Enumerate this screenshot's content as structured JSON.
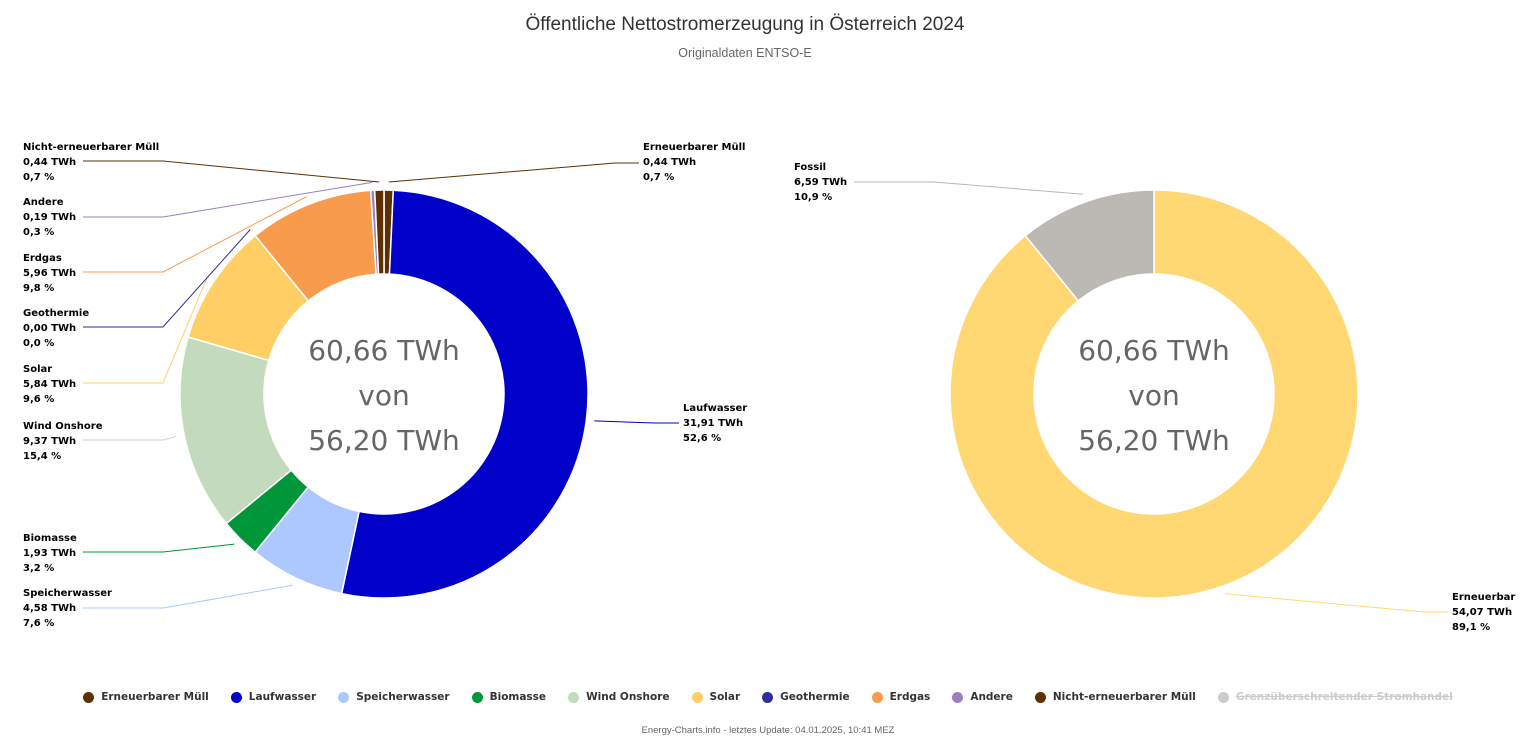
{
  "title": "Öffentliche Nettostromerzeugung in Österreich 2024",
  "subtitle": "Originaldaten ENTSO-E",
  "footer": "Energy-Charts.info - letztes Update: 04.01.2025, 10:41 MEZ",
  "chart_data": [
    {
      "type": "pie",
      "variant": "donut",
      "center_text": [
        "60,66 TWh",
        "von",
        "56,20 TWh"
      ],
      "slices": [
        {
          "name": "Erneuerbarer Müll",
          "value": 0.44,
          "value_label": "0,44 TWh",
          "percent_label": "0,7 %",
          "color": "#5c3000"
        },
        {
          "name": "Laufwasser",
          "value": 31.91,
          "value_label": "31,91 TWh",
          "percent_label": "52,6 %",
          "color": "#0000c8"
        },
        {
          "name": "Speicherwasser",
          "value": 4.58,
          "value_label": "4,58 TWh",
          "percent_label": "7,6 %",
          "color": "#adc8ff"
        },
        {
          "name": "Biomasse",
          "value": 1.93,
          "value_label": "1,93 TWh",
          "percent_label": "3,2 %",
          "color": "#00963a"
        },
        {
          "name": "Wind Onshore",
          "value": 9.37,
          "value_label": "9,37 TWh",
          "percent_label": "15,4 %",
          "color": "#c3dbbc"
        },
        {
          "name": "Solar",
          "value": 5.84,
          "value_label": "5,84 TWh",
          "percent_label": "9,6 %",
          "color": "#ffcf66"
        },
        {
          "name": "Geothermie",
          "value": 0.0,
          "value_label": "0,00 TWh",
          "percent_label": "0,0 %",
          "color": "#2e2e96"
        },
        {
          "name": "Erdgas",
          "value": 5.96,
          "value_label": "5,96 TWh",
          "percent_label": "9,8 %",
          "color": "#f99b4c"
        },
        {
          "name": "Andere",
          "value": 0.19,
          "value_label": "0,19 TWh",
          "percent_label": "0,3 %",
          "color": "#9c7fbe"
        },
        {
          "name": "Nicht-erneuerbarer Müll",
          "value": 0.44,
          "value_label": "0,44 TWh",
          "percent_label": "0,7 %",
          "color": "#5c3000"
        }
      ]
    },
    {
      "type": "pie",
      "variant": "donut",
      "center_text": [
        "60,66 TWh",
        "von",
        "56,20 TWh"
      ],
      "slices": [
        {
          "name": "Erneuerbar",
          "value": 54.07,
          "value_label": "54,07 TWh",
          "percent_label": "89,1 %",
          "color": "#ffd873"
        },
        {
          "name": "Fossil",
          "value": 6.59,
          "value_label": "6,59 TWh",
          "percent_label": "10,9 %",
          "color": "#bcb8b4"
        }
      ]
    }
  ],
  "legend": [
    {
      "label": "Erneuerbarer Müll",
      "color": "#5c3000",
      "disabled": false
    },
    {
      "label": "Laufwasser",
      "color": "#0000c8",
      "disabled": false
    },
    {
      "label": "Speicherwasser",
      "color": "#adc8ff",
      "disabled": false
    },
    {
      "label": "Biomasse",
      "color": "#00963a",
      "disabled": false
    },
    {
      "label": "Wind Onshore",
      "color": "#c3dbbc",
      "disabled": false
    },
    {
      "label": "Solar",
      "color": "#ffcf66",
      "disabled": false
    },
    {
      "label": "Geothermie",
      "color": "#2e2e96",
      "disabled": false
    },
    {
      "label": "Erdgas",
      "color": "#f99b4c",
      "disabled": false
    },
    {
      "label": "Andere",
      "color": "#9c7fbe",
      "disabled": false
    },
    {
      "label": "Nicht-erneuerbarer Müll",
      "color": "#5c3000",
      "disabled": false
    },
    {
      "label": "Grenzüberschreitender Stromhandel",
      "color": "#cccccc",
      "disabled": true
    }
  ]
}
